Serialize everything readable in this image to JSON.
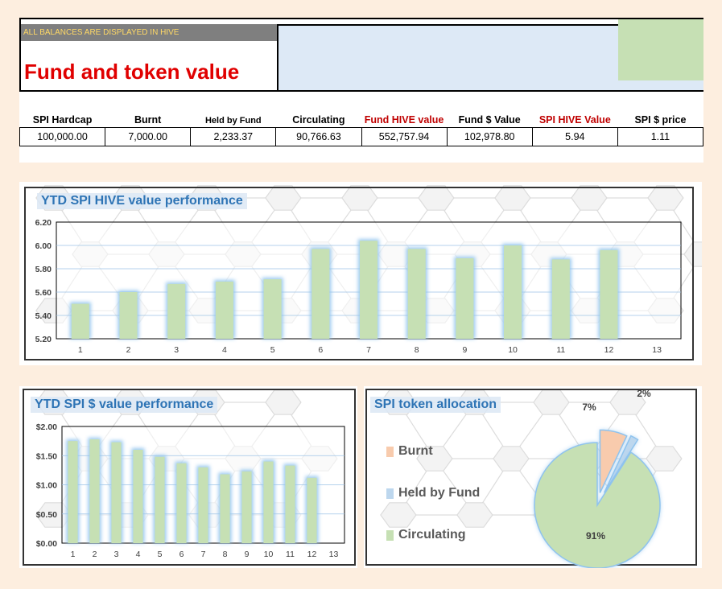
{
  "header": {
    "banner": "ALL BALANCES ARE DISPLAYED IN HIVE",
    "title": "Fund and token value",
    "colors": {
      "banner_bg": "#7f7f7f",
      "banner_text": "#ffd966",
      "title": "#e00000",
      "blue_box": "#dde9f6",
      "green_box": "#c6e0b4"
    }
  },
  "stats": {
    "headers": [
      "SPI Hardcap",
      "Burnt",
      "Held by Fund",
      "Circulating",
      "Fund HIVE value",
      "Fund $ Value",
      "SPI HIVE Value",
      "SPI $ price"
    ],
    "values": [
      "100,000.00",
      "7,000.00",
      "2,233.37",
      "90,766.63",
      "552,757.94",
      "102,978.80",
      "5.94",
      "1.11"
    ]
  },
  "chart_data": [
    {
      "type": "bar",
      "title": "YTD SPI HIVE value performance",
      "categories": [
        "1",
        "2",
        "3",
        "4",
        "5",
        "6",
        "7",
        "8",
        "9",
        "10",
        "11",
        "12",
        "13"
      ],
      "values": [
        5.5,
        5.6,
        5.67,
        5.69,
        5.71,
        5.97,
        6.04,
        5.97,
        5.89,
        6.0,
        5.88,
        5.96,
        null
      ],
      "ylim": [
        5.2,
        6.2
      ],
      "yticks": [
        "5.20",
        "5.40",
        "5.60",
        "5.80",
        "6.00",
        "6.20"
      ],
      "grid": true,
      "bar_color": "#c6e0b4",
      "glow_color": "#8fc3ee"
    },
    {
      "type": "bar",
      "title": "YTD SPI $ value performance",
      "categories": [
        "1",
        "2",
        "3",
        "4",
        "5",
        "6",
        "7",
        "8",
        "9",
        "10",
        "11",
        "12",
        "13"
      ],
      "values": [
        1.75,
        1.78,
        1.73,
        1.6,
        1.48,
        1.37,
        1.3,
        1.18,
        1.23,
        1.4,
        1.33,
        1.12,
        null
      ],
      "ylim": [
        0,
        2
      ],
      "yticks": [
        "$0.00",
        "$0.50",
        "$1.00",
        "$1.50",
        "$2.00"
      ],
      "grid": true,
      "bar_color": "#c6e0b4",
      "glow_color": "#8fc3ee"
    },
    {
      "type": "pie",
      "title": "SPI token allocation",
      "labels": [
        "Burnt",
        "Held by Fund",
        "Circulating"
      ],
      "values": [
        7,
        2,
        91
      ],
      "value_labels": [
        "7%",
        "2%",
        "91%"
      ],
      "colors": [
        "#f8cbad",
        "#bdd7ee",
        "#c6e0b4"
      ],
      "legend": "left"
    }
  ]
}
